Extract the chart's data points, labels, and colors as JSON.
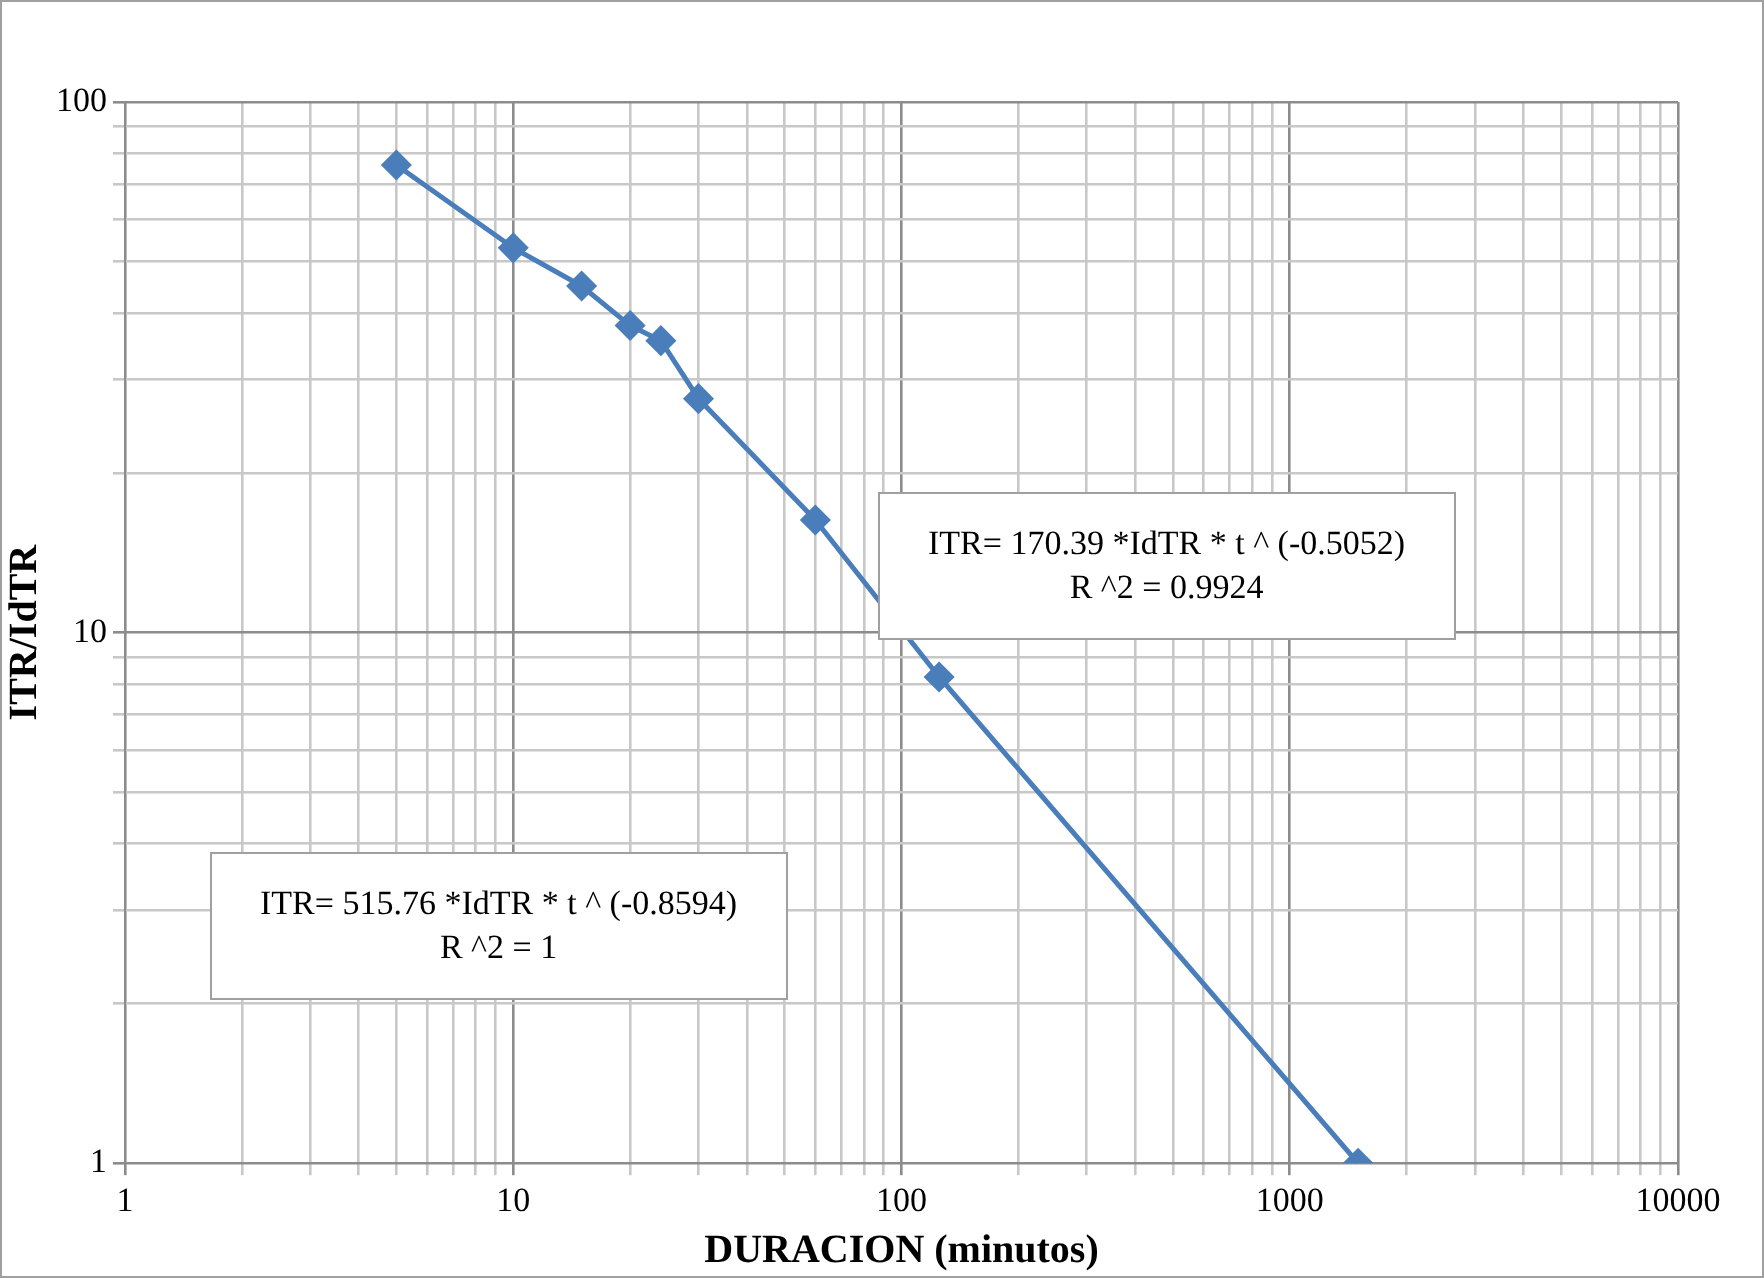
{
  "chart_data": {
    "type": "line",
    "xlabel": "DURACION (minutos)",
    "ylabel": "ITR/IdTR",
    "x": [
      5,
      10,
      15,
      20,
      24,
      30,
      60,
      125,
      1500
    ],
    "series": [
      {
        "color": "#4a7ebb",
        "values": [
          76.1,
          53.1,
          45.0,
          37.9,
          35.5,
          27.6,
          16.3,
          8.25,
          1
        ]
      }
    ],
    "log": "xy",
    "marker": "diamond",
    "grid": true,
    "legend": false,
    "xlim": [
      1,
      10000
    ],
    "ylim": [
      1,
      100
    ],
    "xticks": [
      1,
      {
        "value": 2,
        "label": null
      },
      {
        "value": 3,
        "label": null
      },
      {
        "value": 4,
        "label": null
      },
      {
        "value": 5,
        "label": null
      },
      {
        "value": 6,
        "label": null
      },
      {
        "value": 7,
        "label": null
      },
      {
        "value": 8,
        "label": null
      },
      {
        "value": 9,
        "label": null
      },
      10,
      {
        "value": 20,
        "label": null
      },
      {
        "value": 30,
        "label": null
      },
      {
        "value": 40,
        "label": null
      },
      {
        "value": 50,
        "label": null
      },
      {
        "value": 60,
        "label": null
      },
      {
        "value": 70,
        "label": null
      },
      {
        "value": 80,
        "label": null
      },
      {
        "value": 90,
        "label": null
      },
      100,
      {
        "value": 200,
        "label": null
      },
      {
        "value": 300,
        "label": null
      },
      {
        "value": 400,
        "label": null
      },
      {
        "value": 500,
        "label": null
      },
      {
        "value": 600,
        "label": null
      },
      {
        "value": 700,
        "label": null
      },
      {
        "value": 800,
        "label": null
      },
      {
        "value": 900,
        "label": null
      },
      1000,
      {
        "value": 2000,
        "label": null
      },
      {
        "value": 3000,
        "label": null
      },
      {
        "value": 4000,
        "label": null
      },
      {
        "value": 5000,
        "label": null
      },
      {
        "value": 6000,
        "label": null
      },
      {
        "value": 7000,
        "label": null
      },
      {
        "value": 8000,
        "label": null
      },
      {
        "value": 9000,
        "label": null
      },
      10000
    ],
    "yticks": [
      1,
      {
        "value": 2,
        "label": null
      },
      {
        "value": 3,
        "label": null
      },
      {
        "value": 4,
        "label": null
      },
      {
        "value": 5,
        "label": null
      },
      {
        "value": 6,
        "label": null
      },
      {
        "value": 7,
        "label": null
      },
      {
        "value": 8,
        "label": null
      },
      {
        "value": 9,
        "label": null
      },
      10,
      {
        "value": 20,
        "label": null
      },
      {
        "value": 30,
        "label": null
      },
      {
        "value": 40,
        "label": null
      },
      {
        "value": 50,
        "label": null
      },
      {
        "value": 60,
        "label": null
      },
      {
        "value": 70,
        "label": null
      },
      {
        "value": 80,
        "label": null
      },
      {
        "value": 90,
        "label": null
      },
      100
    ],
    "annotations": [
      "ITR= 170.39 *IdTR * t ^ (-0.5052)\nR ^2 = 0.9924",
      "ITR= 515.76 *IdTR * t ^ (-0.8594)\nR ^2 = 1"
    ]
  }
}
